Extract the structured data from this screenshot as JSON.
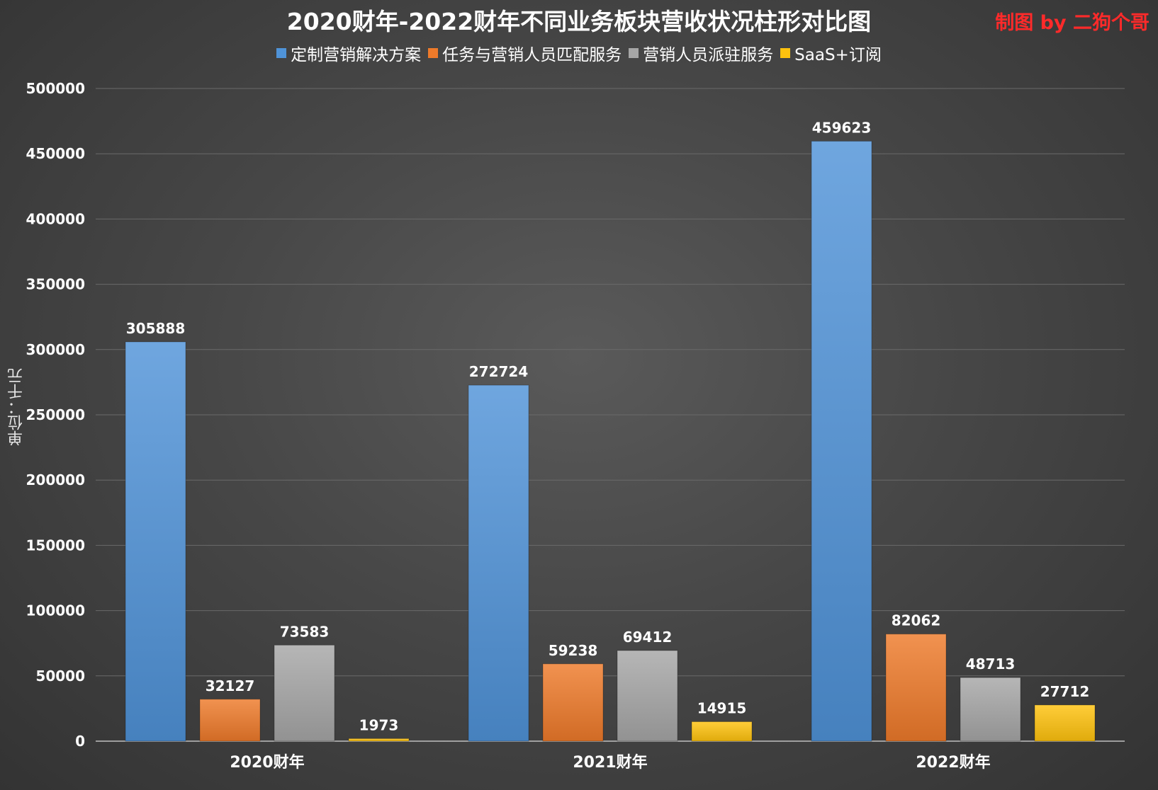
{
  "chart_data": {
    "type": "bar",
    "title": "2020财年-2022财年不同业务板块营收状况柱形对比图",
    "credit": "制图 by 二狗个哥",
    "credit_color": "#ff2a2a",
    "ylabel": "单位：千元",
    "xlabel": "",
    "ylim": [
      0,
      500000
    ],
    "yticks": [
      0,
      50000,
      100000,
      150000,
      200000,
      250000,
      300000,
      350000,
      400000,
      450000,
      500000
    ],
    "grid": true,
    "legend_position": "top-center",
    "categories": [
      "2020财年",
      "2021财年",
      "2022财年"
    ],
    "series": [
      {
        "name": "定制营销解决方案",
        "color": "#4f93d8",
        "values": [
          305888,
          272724,
          459623
        ]
      },
      {
        "name": "任务与营销人员匹配服务",
        "color": "#ee7a2a",
        "values": [
          32127,
          59238,
          82062
        ]
      },
      {
        "name": "营销人员派驻服务",
        "color": "#a6a6a6",
        "values": [
          73583,
          69412,
          48713
        ]
      },
      {
        "name": "SaaS+订阅",
        "color": "#ffc20e",
        "values": [
          1973,
          14915,
          27712
        ]
      }
    ]
  }
}
